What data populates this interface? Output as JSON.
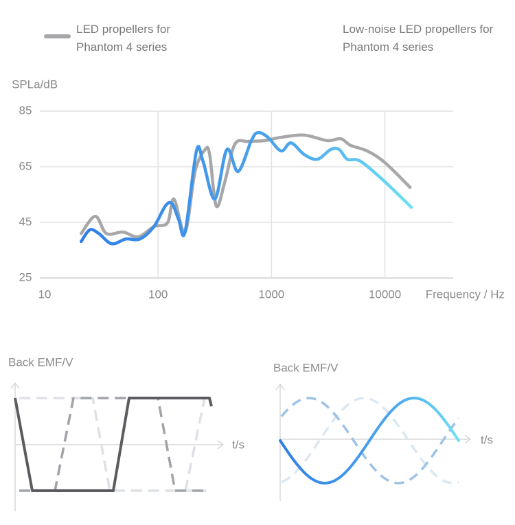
{
  "chart_data": {
    "type": "line",
    "ylabel": "SPLa/dB",
    "xlabel": "Frequency / Hz",
    "xscale": "log",
    "xlim": [
      10,
      40000
    ],
    "xticks": [
      10,
      100,
      1000,
      10000
    ],
    "ylim": [
      25,
      85
    ],
    "yticks": [
      25,
      45,
      65,
      85
    ],
    "grid": true,
    "series": [
      {
        "name": "LED propellers for Phantom 4 series",
        "color": "#a7a7aa",
        "x": [
          21,
          28,
          35,
          49,
          67,
          92,
          121,
          138,
          173,
          212,
          260,
          285,
          326,
          388,
          475,
          620,
          868,
          1215,
          1945,
          3110,
          4070,
          4980,
          6960,
          10000,
          16670
        ],
        "values": [
          41.0,
          47.2,
          41.0,
          41.5,
          39.8,
          43.5,
          44.8,
          53.4,
          41.5,
          63.3,
          71.2,
          69.4,
          50.9,
          59.6,
          73.1,
          74.1,
          74.4,
          75.6,
          76.4,
          74.4,
          75.1,
          72.7,
          70.7,
          66.5,
          57.6
        ]
      },
      {
        "name": "Low-noise LED propellers for Phantom 4 series",
        "color": "#3f93e6",
        "x": [
          21,
          25,
          30,
          39,
          52,
          69,
          92,
          116,
          133,
          152,
          173,
          218,
          249,
          317,
          404,
          508,
          664,
          759,
          929,
          1215,
          1486,
          1945,
          2540,
          3325,
          3960,
          4660,
          6085,
          10000,
          17100
        ],
        "values": [
          38.1,
          42.3,
          41.0,
          37.3,
          39.0,
          39.0,
          43.5,
          50.9,
          51.7,
          46.0,
          41.5,
          70.7,
          67.0,
          53.4,
          71.2,
          63.3,
          74.4,
          77.3,
          75.6,
          70.7,
          73.6,
          69.4,
          67.7,
          71.2,
          71.2,
          67.7,
          67.0,
          59.6,
          50.4
        ]
      }
    ]
  },
  "waveforms": [
    {
      "ylabel": "Back EMF/V",
      "xlabel": "t/s"
    },
    {
      "ylabel": "Back EMF/V",
      "xlabel": "t/s"
    }
  ]
}
